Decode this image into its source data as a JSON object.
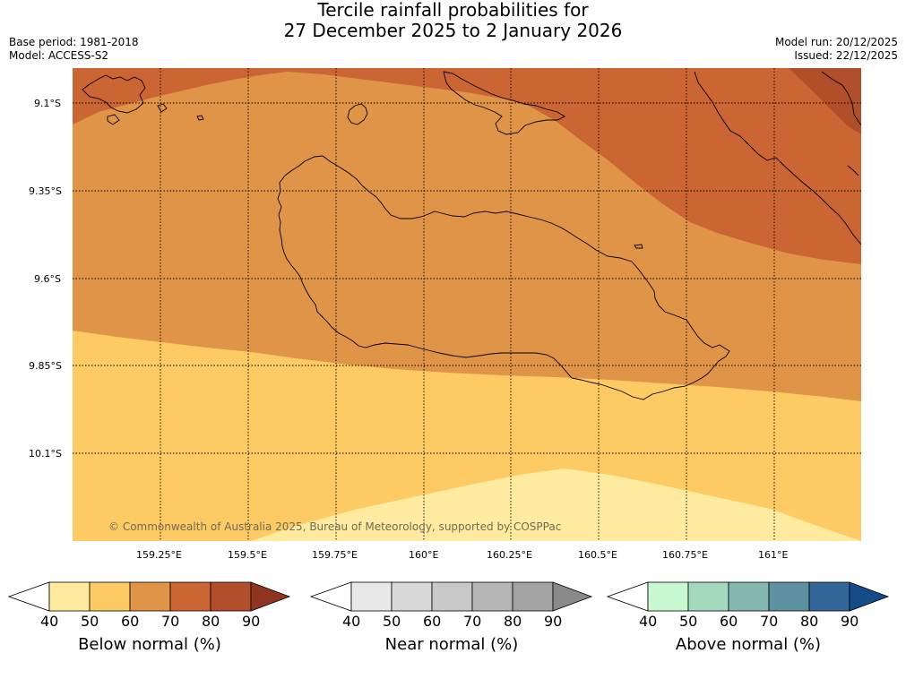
{
  "header": {
    "title_line1": "Tercile rainfall probabilities for",
    "title_line2": "27 December 2025 to 2 January 2026",
    "base_period": "Base period: 1981-2018",
    "model": "Model: ACCESS-S2",
    "model_run": "Model run: 20/12/2025",
    "issued": "Issued: 22/12/2025"
  },
  "map": {
    "lat_labels": [
      "9.1°S",
      "9.35°S",
      "9.6°S",
      "9.85°S",
      "10.1°S"
    ],
    "lon_labels": [
      "159.25°E",
      "159.5°E",
      "159.75°E",
      "160°E",
      "160.25°E",
      "160.5°E",
      "160.75°E",
      "161°E"
    ],
    "copyright": "© Commonwealth of Australia 2025, Bureau of Meteorology, supported by COSPPac",
    "region_colors": {
      "below_40_50": "#ffeba0",
      "below_50_60": "#fdca64",
      "below_60_70": "#e09447",
      "below_70_80": "#cb6533",
      "below_80_90": "#b14f2a"
    }
  },
  "colorbars": [
    {
      "title": "Below normal (%)",
      "ticks": [
        "40",
        "50",
        "60",
        "70",
        "80",
        "90"
      ],
      "colors": [
        "#ffffff",
        "#ffeba0",
        "#fdca64",
        "#e09447",
        "#cb6533",
        "#b14f2a",
        "#8f3420"
      ]
    },
    {
      "title": "Near normal (%)",
      "ticks": [
        "40",
        "50",
        "60",
        "70",
        "80",
        "90"
      ],
      "colors": [
        "#ffffff",
        "#e8e8e8",
        "#d8d8d8",
        "#c8c8c8",
        "#b6b6b6",
        "#a3a3a3",
        "#8a8a8a"
      ]
    },
    {
      "title": "Above normal (%)",
      "ticks": [
        "40",
        "50",
        "60",
        "70",
        "80",
        "90"
      ],
      "colors": [
        "#ffffff",
        "#c8f8d0",
        "#a3dabe",
        "#83b7b0",
        "#5d93a1",
        "#33669a",
        "#134c87"
      ]
    }
  ]
}
